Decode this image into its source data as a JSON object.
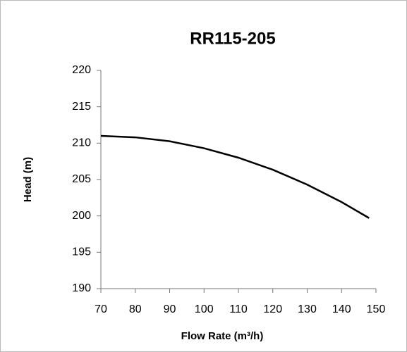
{
  "chart_data": {
    "type": "line",
    "title": "RR115-205",
    "x_label": "Flow Rate (m³/h)",
    "y_label": "Head (m)",
    "x": [
      70,
      80,
      90,
      100,
      110,
      120,
      130,
      140,
      148
    ],
    "series": [
      {
        "name": "RR115-205",
        "color": "#000000",
        "values": [
          211,
          210.8,
          210.26,
          209.3,
          208.0,
          206.35,
          204.3,
          201.9,
          199.7
        ]
      }
    ],
    "xlim": [
      70,
      150
    ],
    "xticks": [
      70,
      80,
      90,
      100,
      110,
      120,
      130,
      140,
      150
    ],
    "ylim": [
      190,
      220
    ],
    "yticks": [
      190,
      195,
      200,
      205,
      210,
      215,
      220
    ],
    "grid": false,
    "legend": false
  }
}
